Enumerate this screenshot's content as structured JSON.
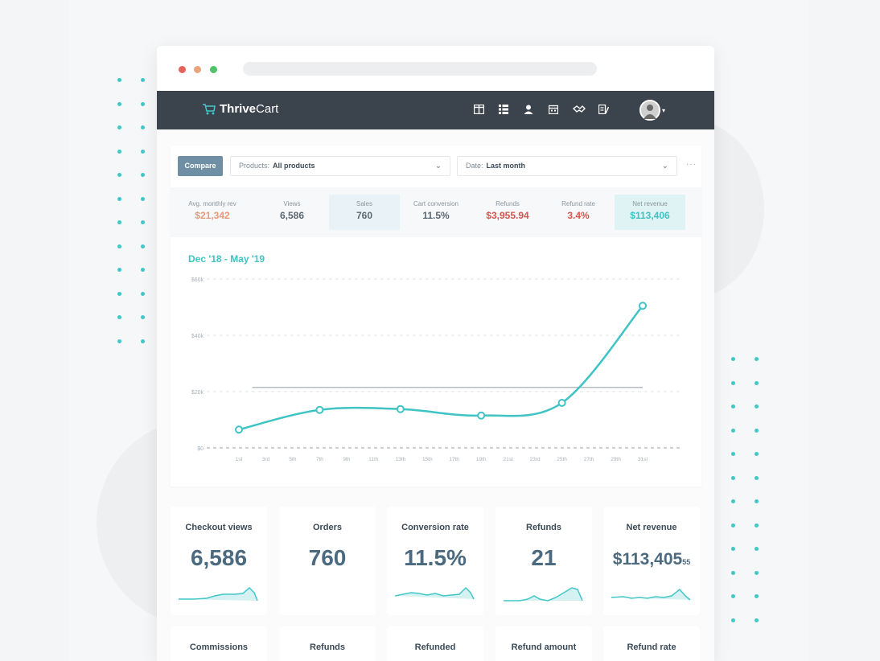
{
  "app": {
    "logo_thrive": "Thrive",
    "logo_cart": "Cart"
  },
  "filters": {
    "compare_label": "Compare",
    "products_label": "Products:",
    "products_value": "All products",
    "date_label": "Date:",
    "date_value": "Last month",
    "more": "···"
  },
  "stats": [
    {
      "label": "Avg. monthly rev",
      "value": "$21,342",
      "color": "#e59a78"
    },
    {
      "label": "Views",
      "value": "6,586",
      "color": "#5a6872"
    },
    {
      "label": "Sales",
      "value": "760",
      "color": "#5a6872"
    },
    {
      "label": "Cart conversion",
      "value": "11.5%",
      "color": "#5a6872"
    },
    {
      "label": "Refunds",
      "value": "$3,955.94",
      "color": "#d9534f"
    },
    {
      "label": "Refund rate",
      "value": "3.4%",
      "color": "#d9534f"
    },
    {
      "label": "Net revenue",
      "value": "$113,406",
      "color": "#3fc3c4"
    }
  ],
  "chart_data": {
    "type": "line",
    "title": "Dec '18 - May '19",
    "categories": [
      "1st",
      "3rd",
      "5th",
      "7th",
      "9th",
      "11th",
      "13th",
      "15th",
      "17th",
      "19th",
      "21st",
      "23rd",
      "25th",
      "27th",
      "29th",
      "31st"
    ],
    "yticks": [
      "$0",
      "$20k",
      "$40k",
      "$60k"
    ],
    "ylim": [
      0,
      60000
    ],
    "series": [
      {
        "x": [
          1,
          7,
          13,
          19,
          25,
          31
        ],
        "values": [
          6500,
          13500,
          13800,
          11500,
          16000,
          50500
        ]
      }
    ],
    "reference_line": {
      "value": 21500,
      "x_start": 2,
      "x_end": 31
    },
    "grid": true,
    "line_color": "#3fc3c4"
  },
  "kpis": [
    {
      "label": "Checkout views",
      "value": "6,586",
      "cents": ""
    },
    {
      "label": "Orders",
      "value": "760",
      "cents": ""
    },
    {
      "label": "Conversion rate",
      "value": "11.5%",
      "cents": ""
    },
    {
      "label": "Refunds",
      "value": "21",
      "cents": ""
    },
    {
      "label": "Net revenue",
      "value": "$113,405",
      "cents": "55"
    }
  ],
  "kpis_row2": [
    {
      "label": "Commissions"
    },
    {
      "label": "Refunds"
    },
    {
      "label": "Refunded"
    },
    {
      "label": "Refund amount"
    },
    {
      "label": "Refund rate"
    }
  ],
  "colors": {
    "accent": "#41c7c8",
    "nav": "#3b434c",
    "compare": "#6e8fa4"
  },
  "icons": [
    "dashboard-icon",
    "grid-icon",
    "user-icon",
    "calendar-icon",
    "handshake-icon",
    "report-icon"
  ]
}
